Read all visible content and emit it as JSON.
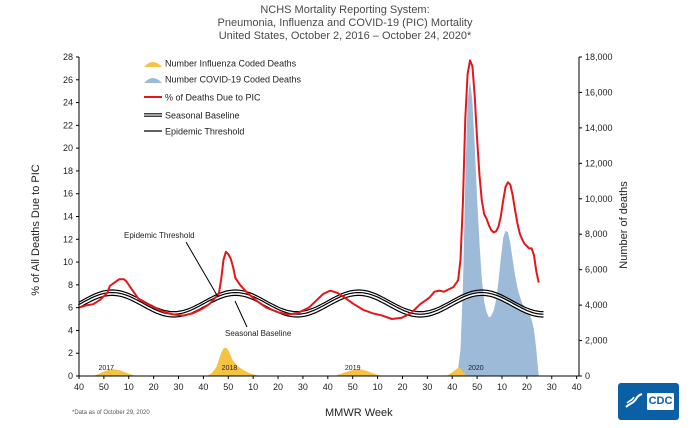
{
  "titles": {
    "line1": "NCHS Mortality Reporting System:",
    "line2": "Pneumonia, Influenza and COVID-19 (PIC) Mortality",
    "line3": "United States, October 2, 2016 – October 24, 2020*"
  },
  "axes": {
    "y_left_label": "% of All Deaths Due to PIC",
    "y_right_label": "Number of deaths",
    "x_label": "MMWR Week",
    "y_left_ticks": [
      "0",
      "2",
      "4",
      "6",
      "8",
      "10",
      "12",
      "14",
      "16",
      "18",
      "20",
      "22",
      "24",
      "26",
      "28"
    ],
    "y_right_ticks": [
      "0",
      "2,000",
      "4,000",
      "6,000",
      "8,000",
      "10,000",
      "12,000",
      "14,000",
      "16,000",
      "18,000"
    ],
    "x_ticks": [
      "40",
      "50",
      "10",
      "20",
      "30",
      "40",
      "50",
      "10",
      "20",
      "30",
      "40",
      "50",
      "10",
      "20",
      "30",
      "40",
      "50",
      "10",
      "20",
      "30",
      "40"
    ],
    "year_labels": [
      "2017",
      "2018",
      "2019",
      "2020"
    ]
  },
  "legend": [
    {
      "label": "Number Influenza Coded Deaths",
      "color": "#f5c242",
      "kind": "area"
    },
    {
      "label": "Number COVID-19 Coded Deaths",
      "color": "#9dbbd8",
      "kind": "area"
    },
    {
      "label": "% of Deaths Due to PIC",
      "color": "#e3171b",
      "kind": "line"
    },
    {
      "label": "Seasonal Baseline",
      "color": "#000000",
      "kind": "doubleline"
    },
    {
      "label": "Epidemic Threshold",
      "color": "#000000",
      "kind": "line"
    }
  ],
  "annotations": {
    "epidemic_threshold": "Epidemic Threshold",
    "seasonal_baseline": "Seasonal Baseline"
  },
  "footnote": "*Data as of October 29, 2020",
  "logo": {
    "text": "CDC"
  },
  "colors": {
    "pic": "#e3171b",
    "influenza": "#f5c242",
    "covid": "#9dbbd8",
    "baseline": "#000000"
  },
  "chart_data": {
    "type": "line",
    "title": "NCHS Mortality Reporting System: Pneumonia, Influenza and COVID-19 (PIC) Mortality",
    "xlabel": "MMWR Week",
    "ylabel": "% of All Deaths Due to PIC",
    "y2label": "Number of deaths",
    "ylim": [
      0,
      28
    ],
    "y2lim": [
      0,
      18000
    ],
    "x_unit": "weeks since 2016 MMWR week 40",
    "x_range": [
      0,
      211
    ],
    "series": [
      {
        "name": "% of Deaths Due to PIC",
        "axis": "left",
        "points": [
          [
            0,
            6.0
          ],
          [
            3,
            6.2
          ],
          [
            6,
            6.3
          ],
          [
            9,
            6.7
          ],
          [
            12,
            7.3
          ],
          [
            13,
            7.9
          ],
          [
            15,
            8.2
          ],
          [
            17,
            8.5
          ],
          [
            19,
            8.5
          ],
          [
            20,
            8.3
          ],
          [
            22,
            7.7
          ],
          [
            24,
            7.1
          ],
          [
            25,
            6.8
          ],
          [
            28,
            6.4
          ],
          [
            32,
            6.0
          ],
          [
            36,
            5.6
          ],
          [
            40,
            5.4
          ],
          [
            44,
            5.3
          ],
          [
            48,
            5.5
          ],
          [
            52,
            5.9
          ],
          [
            55,
            6.3
          ],
          [
            59,
            7.2
          ],
          [
            60,
            8.5
          ],
          [
            61,
            10.2
          ],
          [
            62,
            10.9
          ],
          [
            63,
            10.7
          ],
          [
            64,
            10.3
          ],
          [
            65,
            9.6
          ],
          [
            66,
            8.6
          ],
          [
            68,
            8.0
          ],
          [
            71,
            7.3
          ],
          [
            75,
            6.6
          ],
          [
            79,
            6.0
          ],
          [
            84,
            5.6
          ],
          [
            88,
            5.4
          ],
          [
            92,
            5.5
          ],
          [
            97,
            6.0
          ],
          [
            100,
            6.6
          ],
          [
            103,
            7.2
          ],
          [
            106,
            7.5
          ],
          [
            109,
            7.3
          ],
          [
            112,
            6.9
          ],
          [
            116,
            6.3
          ],
          [
            120,
            5.8
          ],
          [
            124,
            5.5
          ],
          [
            128,
            5.3
          ],
          [
            132,
            5.0
          ],
          [
            136,
            5.1
          ],
          [
            140,
            5.5
          ],
          [
            144,
            6.3
          ],
          [
            148,
            6.9
          ],
          [
            150,
            7.4
          ],
          [
            152,
            7.5
          ],
          [
            154,
            7.4
          ],
          [
            156,
            7.6
          ],
          [
            158,
            7.8
          ],
          [
            160,
            8.4
          ],
          [
            161,
            10.2
          ],
          [
            162,
            15.2
          ],
          [
            163,
            22.6
          ],
          [
            164,
            26.5
          ],
          [
            165,
            27.7
          ],
          [
            166,
            27.2
          ],
          [
            167,
            24.6
          ],
          [
            168,
            20.8
          ],
          [
            169,
            17.6
          ],
          [
            170,
            15.4
          ],
          [
            171,
            14.2
          ],
          [
            172,
            13.8
          ],
          [
            173,
            13.2
          ],
          [
            174,
            12.8
          ],
          [
            175,
            12.6
          ],
          [
            176,
            12.7
          ],
          [
            177,
            13.1
          ],
          [
            178,
            14.0
          ],
          [
            179,
            15.4
          ],
          [
            180,
            16.6
          ],
          [
            181,
            17.0
          ],
          [
            182,
            16.8
          ],
          [
            183,
            15.9
          ],
          [
            184,
            14.6
          ],
          [
            185,
            13.4
          ],
          [
            186,
            12.5
          ],
          [
            187,
            12.0
          ],
          [
            188,
            11.6
          ],
          [
            189,
            11.4
          ],
          [
            190,
            11.2
          ],
          [
            191,
            11.2
          ],
          [
            192,
            10.6
          ],
          [
            193,
            9.2
          ],
          [
            194,
            8.2
          ]
        ]
      },
      {
        "name": "Seasonal Baseline",
        "axis": "left",
        "model": "sinusoid",
        "mean": 6.25,
        "amplitude": 0.95,
        "period_weeks": 52,
        "peak_week_offset": 14,
        "range": [
          0,
          196
        ]
      },
      {
        "name": "Epidemic Threshold",
        "axis": "left",
        "model": "sinusoid",
        "mean": 6.6,
        "amplitude": 0.95,
        "period_weeks": 52,
        "peak_week_offset": 14,
        "range": [
          0,
          196
        ]
      },
      {
        "name": "Number Influenza Coded Deaths",
        "axis": "right",
        "points": [
          [
            6,
            0
          ],
          [
            8,
            100
          ],
          [
            11,
            280
          ],
          [
            14,
            390
          ],
          [
            17,
            340
          ],
          [
            20,
            180
          ],
          [
            23,
            40
          ],
          [
            25,
            0
          ],
          [
            54,
            0
          ],
          [
            56,
            150
          ],
          [
            58,
            500
          ],
          [
            59,
            900
          ],
          [
            60,
            1300
          ],
          [
            61,
            1550
          ],
          [
            62,
            1600
          ],
          [
            63,
            1450
          ],
          [
            64,
            1150
          ],
          [
            65,
            850
          ],
          [
            67,
            560
          ],
          [
            69,
            360
          ],
          [
            72,
            150
          ],
          [
            75,
            40
          ],
          [
            77,
            0
          ],
          [
            108,
            0
          ],
          [
            110,
            100
          ],
          [
            113,
            240
          ],
          [
            116,
            350
          ],
          [
            119,
            370
          ],
          [
            122,
            260
          ],
          [
            125,
            110
          ],
          [
            128,
            0
          ],
          [
            155,
            0
          ],
          [
            157,
            150
          ],
          [
            159,
            360
          ],
          [
            160,
            470
          ],
          [
            161,
            420
          ],
          [
            162,
            250
          ],
          [
            163,
            80
          ],
          [
            164,
            0
          ]
        ]
      },
      {
        "name": "Number COVID-19 Coded Deaths",
        "axis": "right",
        "points": [
          [
            157,
            0
          ],
          [
            159,
            50
          ],
          [
            160,
            400
          ],
          [
            161,
            1500
          ],
          [
            162,
            5000
          ],
          [
            163,
            11000
          ],
          [
            164,
            15500
          ],
          [
            165,
            16700
          ],
          [
            166,
            15500
          ],
          [
            167,
            13000
          ],
          [
            168,
            10000
          ],
          [
            169,
            7500
          ],
          [
            170,
            5500
          ],
          [
            171,
            4200
          ],
          [
            172,
            3600
          ],
          [
            173,
            3300
          ],
          [
            174,
            3400
          ],
          [
            175,
            3700
          ],
          [
            176,
            4300
          ],
          [
            177,
            5300
          ],
          [
            178,
            6600
          ],
          [
            179,
            7800
          ],
          [
            180,
            8200
          ],
          [
            181,
            8100
          ],
          [
            182,
            7500
          ],
          [
            183,
            6600
          ],
          [
            184,
            5700
          ],
          [
            185,
            5000
          ],
          [
            186,
            4500
          ],
          [
            187,
            4100
          ],
          [
            188,
            3900
          ],
          [
            189,
            3700
          ],
          [
            190,
            3500
          ],
          [
            191,
            3200
          ],
          [
            192,
            2600
          ],
          [
            193,
            1500
          ],
          [
            194,
            0
          ]
        ]
      }
    ]
  }
}
